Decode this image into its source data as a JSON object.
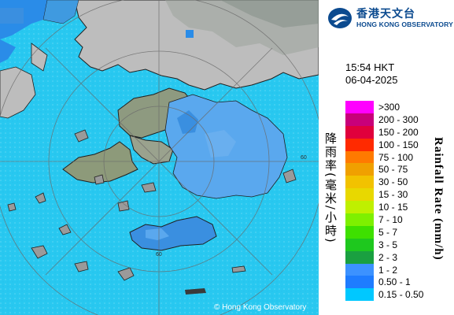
{
  "header": {
    "logo_cn": "香港天文台",
    "logo_en": "HONG KONG OBSERVATORY"
  },
  "timestamp": {
    "time": "15:54 HKT",
    "date": "06-04-2025"
  },
  "legend": {
    "title_cn": "降雨率(毫米/小時)",
    "title_en": "Rainfall Rate (mm/h)",
    "items": [
      {
        "label": ">300",
        "color": "#ff00ff"
      },
      {
        "label": "200 - 300",
        "color": "#c8007a"
      },
      {
        "label": "150 - 200",
        "color": "#e0003c"
      },
      {
        "label": "100 - 150",
        "color": "#ff2a00"
      },
      {
        "label": "75 - 100",
        "color": "#ff7a00"
      },
      {
        "label": "50 - 75",
        "color": "#f0a000"
      },
      {
        "label": "30 - 50",
        "color": "#f2c200"
      },
      {
        "label": "15 - 30",
        "color": "#e8d800"
      },
      {
        "label": "10 - 15",
        "color": "#bff000"
      },
      {
        "label": "7 - 10",
        "color": "#7ef000"
      },
      {
        "label": "5 - 7",
        "color": "#3ee000"
      },
      {
        "label": "3 - 5",
        "color": "#1ec81e"
      },
      {
        "label": "2 - 3",
        "color": "#1aa040"
      },
      {
        "label": "1 - 2",
        "color": "#3c92ff"
      },
      {
        "label": "0.50 - 1",
        "color": "#1e7cff"
      },
      {
        "label": "0.15 - 0.50",
        "color": "#00c8ff"
      }
    ]
  },
  "map": {
    "ring_label": "60",
    "copyright": "© Hong Kong Observatory"
  }
}
